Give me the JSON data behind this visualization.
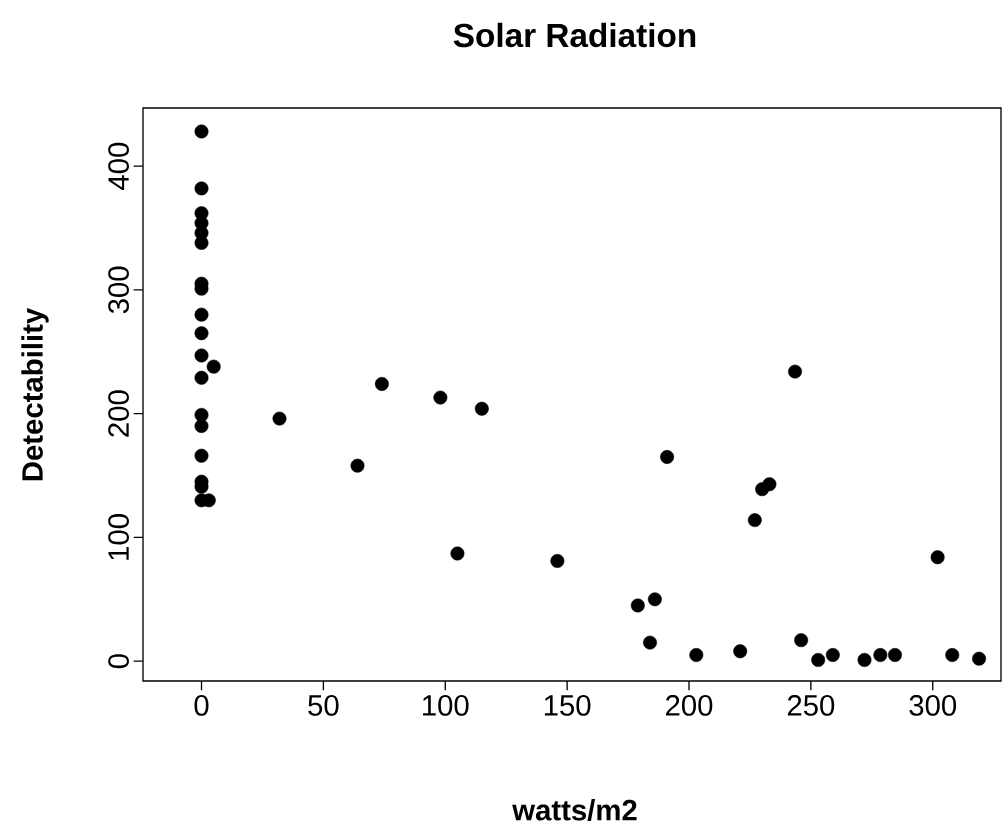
{
  "chart_data": {
    "type": "scatter",
    "title": "Solar Radiation",
    "xlabel": "watts/m2",
    "ylabel": "Detectability",
    "x": [
      0,
      0,
      0,
      0,
      0,
      0,
      0,
      0,
      0,
      0,
      0,
      0,
      5,
      0,
      0,
      0,
      0,
      0,
      0,
      3,
      32,
      74,
      98,
      115,
      64,
      105,
      146,
      191,
      243.5,
      230,
      233,
      227,
      302,
      179,
      186,
      184,
      203,
      221,
      246,
      253,
      259,
      272,
      278.5,
      284.5,
      308,
      319
    ],
    "values": [
      428,
      382,
      362,
      354,
      346,
      338,
      305,
      301,
      280,
      265,
      247,
      229,
      238,
      199,
      190,
      166,
      145,
      141,
      130,
      130,
      196,
      224,
      213,
      204,
      158,
      87,
      81,
      165,
      234,
      139,
      143,
      114,
      84,
      45,
      50,
      15,
      5,
      8,
      17,
      1,
      5,
      1,
      5,
      5,
      5,
      2
    ],
    "color": "#000000",
    "marker": "circle",
    "grid": false,
    "xlim": [
      -24,
      328
    ],
    "ylim": [
      -16,
      447
    ],
    "xticks": [
      0,
      50,
      100,
      150,
      200,
      250,
      300
    ],
    "yticks": [
      0,
      100,
      200,
      300,
      400
    ]
  }
}
